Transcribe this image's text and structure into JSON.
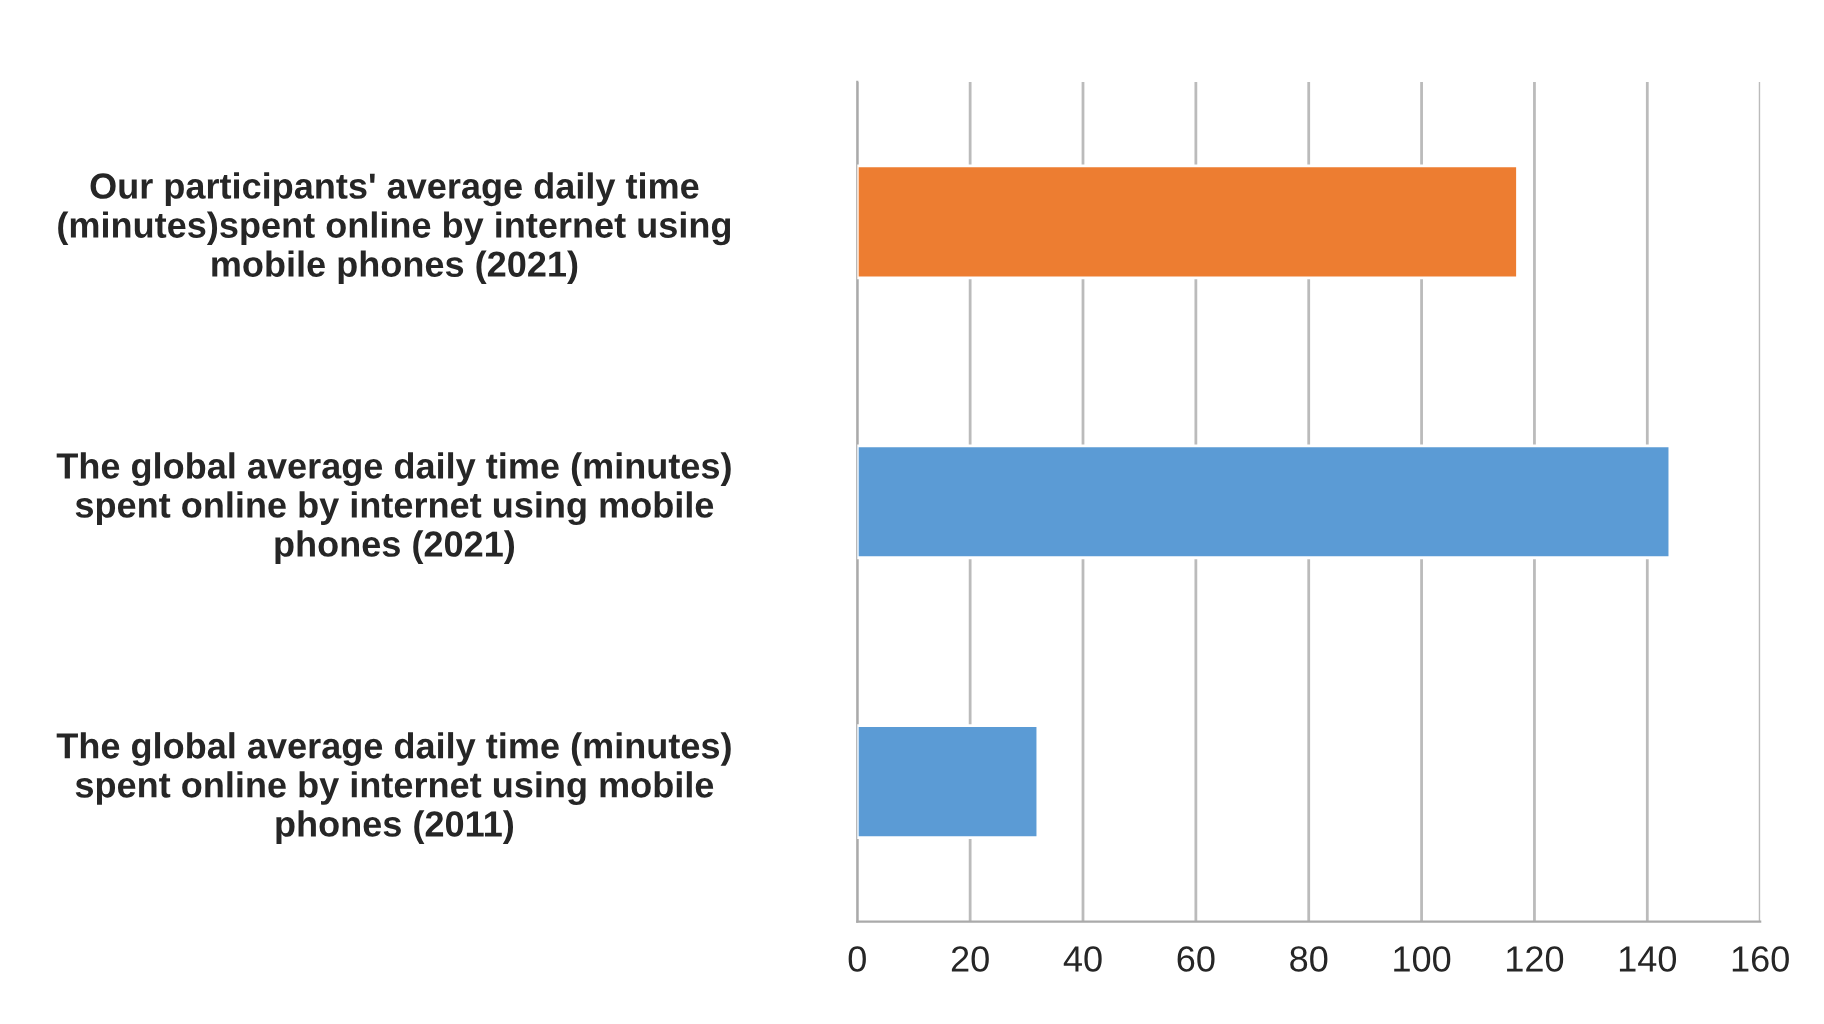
{
  "chart_data": {
    "type": "bar",
    "orientation": "horizontal",
    "categories": [
      "Our participants' average daily time\n(minutes)spent online by internet using\nmobile phones (2021)",
      "The global average daily time (minutes)\nspent online by internet using mobile\nphones (2021)",
      "The global average daily time (minutes)\nspent online by internet using mobile\nphones (2011)"
    ],
    "values": [
      117,
      144,
      32
    ],
    "colors": [
      "#ed7d31",
      "#5b9bd5",
      "#5b9bd5"
    ],
    "xlim": [
      0,
      160
    ],
    "xticks": [
      0,
      20,
      40,
      60,
      80,
      100,
      120,
      140,
      160
    ],
    "grid": "x",
    "legend": false
  }
}
